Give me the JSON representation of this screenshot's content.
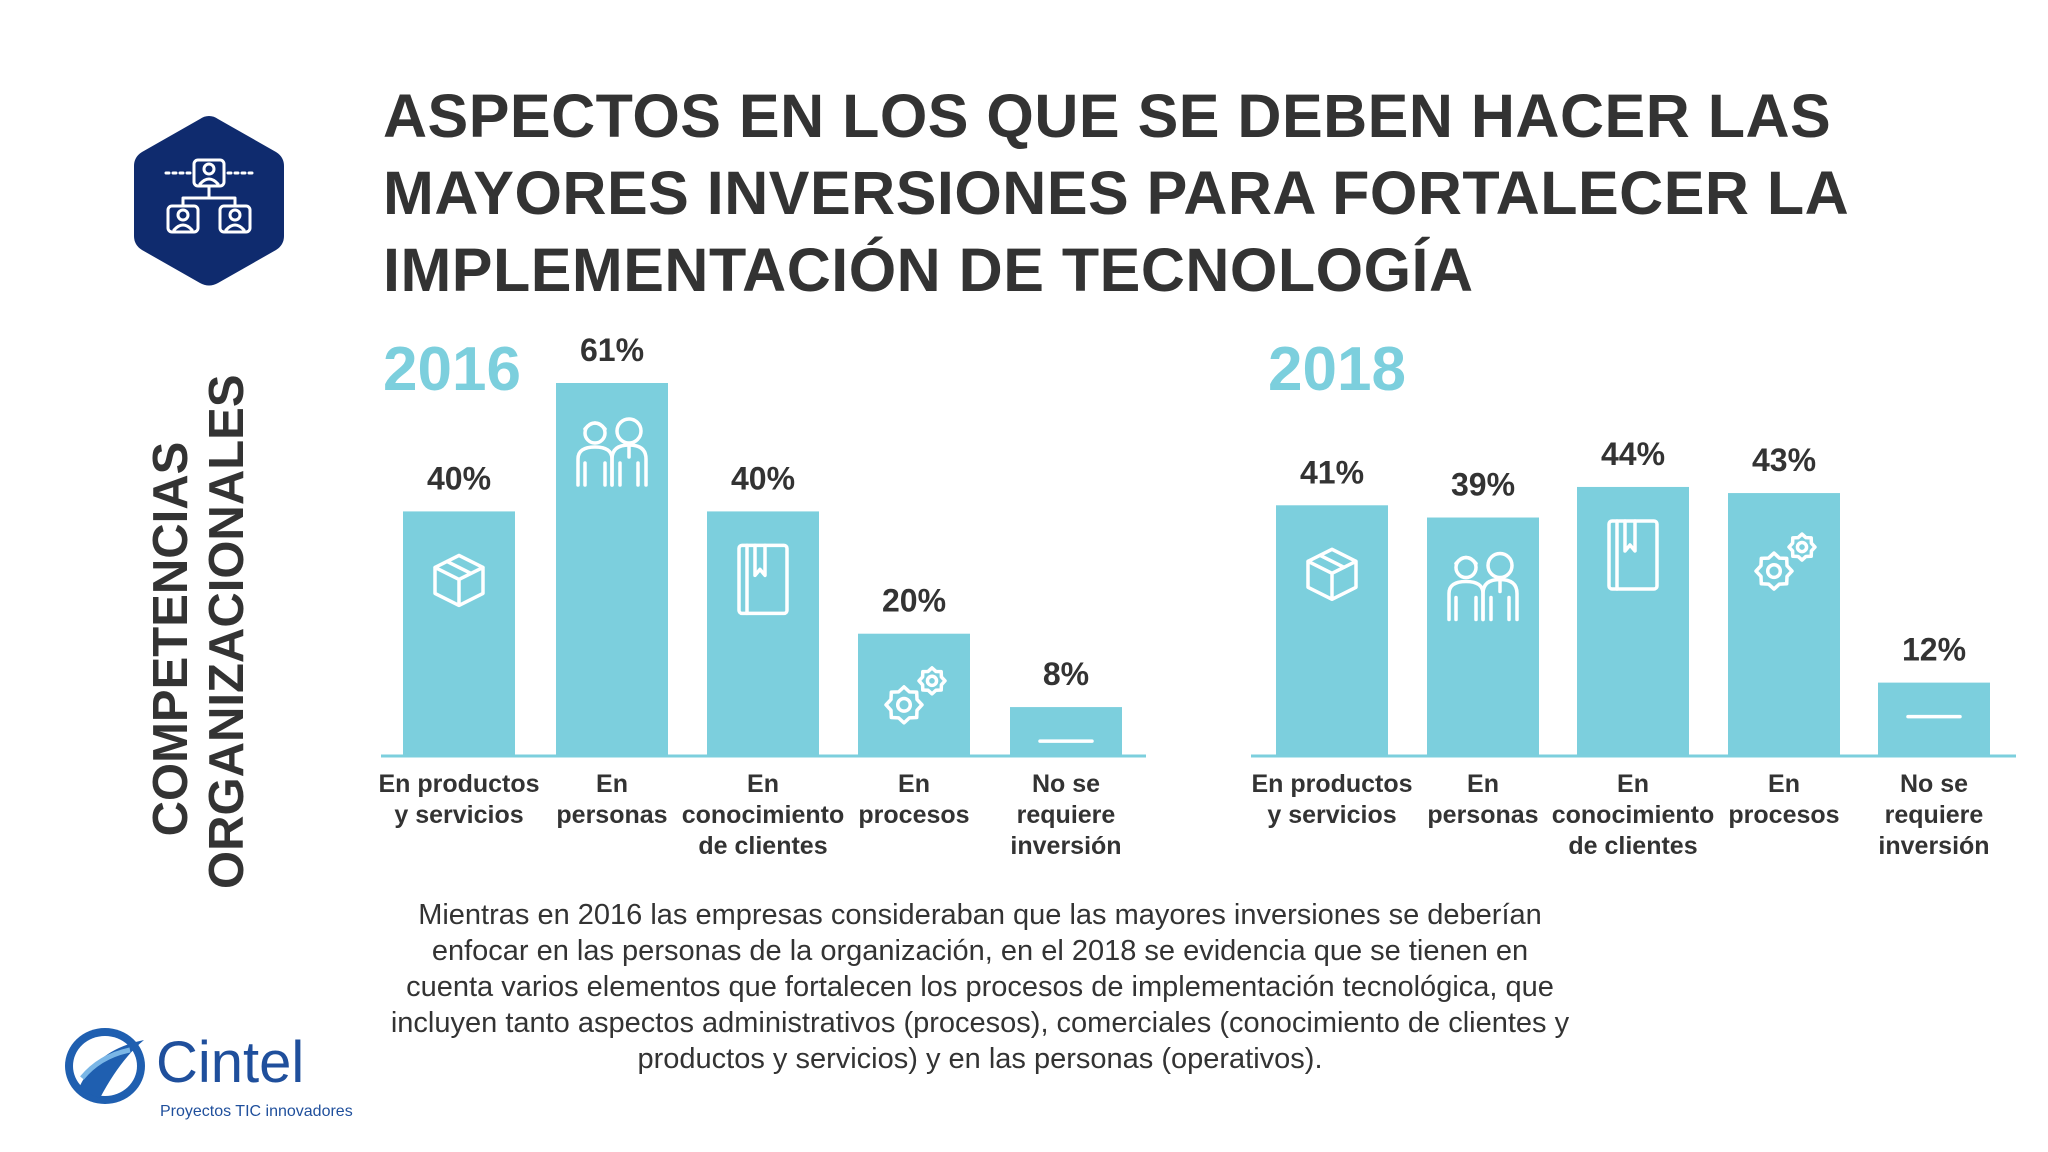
{
  "title_lines": [
    "ASPECTOS EN LOS QUE SE DEBEN HACER LAS",
    "MAYORES INVERSIONES PARA FORTALECER LA",
    "IMPLEMENTACIÓN DE TECNOLOGÍA"
  ],
  "side_label_lines": [
    "COMPETENCIAS",
    "ORGANIZACIONALES"
  ],
  "colors": {
    "bar": "#7ccfdd",
    "title": "#333333",
    "badge": "#0f2b6e",
    "axis": "#7ccfdd"
  },
  "icons": {
    "badge": "org-chart-people-icon",
    "products": "box-icon",
    "people": "people-icon",
    "clients": "book-icon",
    "processes": "gears-icon",
    "none": "dash-icon"
  },
  "chart_data": [
    {
      "type": "bar",
      "title": "2016",
      "categories": [
        [
          "En productos",
          "y servicios"
        ],
        [
          "En",
          "personas"
        ],
        [
          "En",
          "conocimiento",
          "de clientes"
        ],
        [
          "En",
          "procesos"
        ],
        [
          "No se",
          "requiere",
          "inversión"
        ]
      ],
      "values": [
        40,
        61,
        40,
        20,
        8
      ],
      "value_labels": [
        "40%",
        "61%",
        "40%",
        "20%",
        "8%"
      ],
      "icons": [
        "box-icon",
        "people-icon",
        "book-icon",
        "gears-icon",
        "dash-icon"
      ],
      "ylim": [
        0,
        61
      ],
      "grid": false
    },
    {
      "type": "bar",
      "title": "2018",
      "categories": [
        [
          "En productos",
          "y servicios"
        ],
        [
          "En",
          "personas"
        ],
        [
          "En",
          "conocimiento",
          "de clientes"
        ],
        [
          "En",
          "procesos"
        ],
        [
          "No se",
          "requiere",
          "inversión"
        ]
      ],
      "values": [
        41,
        39,
        44,
        43,
        12
      ],
      "value_labels": [
        "41%",
        "39%",
        "44%",
        "43%",
        "12%"
      ],
      "icons": [
        "box-icon",
        "people-icon",
        "book-icon",
        "gears-icon",
        "dash-icon"
      ],
      "ylim": [
        0,
        61
      ],
      "grid": false
    }
  ],
  "caption": "Mientras en 2016 las empresas consideraban que las mayores inversiones se deberían enfocar en las personas de la organización, en el 2018 se evidencia que se tienen en cuenta varios elementos que fortalecen los procesos de implementación tecnológica, que incluyen tanto aspectos administrativos (procesos), comerciales (conocimiento de clientes y productos y servicios) y en las personas (operativos).",
  "logo": {
    "name": "Cintel",
    "tagline": "Proyectos TIC innovadores"
  }
}
